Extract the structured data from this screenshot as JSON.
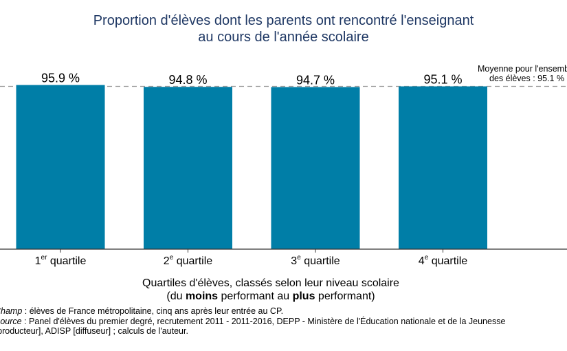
{
  "chart_data": {
    "type": "bar",
    "title": [
      "Proportion d'élèves dont les parents ont rencontré l'enseignant",
      "au cours de l'année scolaire"
    ],
    "categories": [
      {
        "num": "1",
        "sup": "er",
        "label": " quartile"
      },
      {
        "num": "2",
        "sup": "e",
        "label": " quartile"
      },
      {
        "num": "3",
        "sup": "e",
        "label": " quartile"
      },
      {
        "num": "4",
        "sup": "e",
        "label": " quartile"
      }
    ],
    "values": [
      95.9,
      94.8,
      94.7,
      95.1
    ],
    "value_labels": [
      "95.9 %",
      "94.8 %",
      "94.7 %",
      "95.1 %"
    ],
    "bar_color": "#007ea7",
    "reference_line": {
      "value": 95.1,
      "label": [
        "Moyenne pour l'ensemble",
        "des élèves : 95.1 %"
      ],
      "style": "dashed",
      "color": "#999999"
    },
    "xlabel": {
      "line1": "Quartiles d'élèves, classés selon leur niveau scolaire",
      "line2_pre": "(du ",
      "line2_b1": "moins",
      "line2_mid": " performant au ",
      "line2_b2": "plus",
      "line2_post": " performant)"
    },
    "ylabel": "",
    "y_axis_visible": false,
    "grid": false
  },
  "notes": {
    "champ_label": "Champ",
    "champ_text": " : élèves de France métropolitaine, cinq ans après leur entrée au CP.",
    "source_label": "Source",
    "source_text": " : Panel d'élèves du premier degré, recrutement 2011 - 2011-2016, DEPP - Ministère de l'Éducation nationale et de la Jeunesse",
    "source_text2": "(producteur], ADISP [diffuseur] ; calculs de l'auteur."
  }
}
